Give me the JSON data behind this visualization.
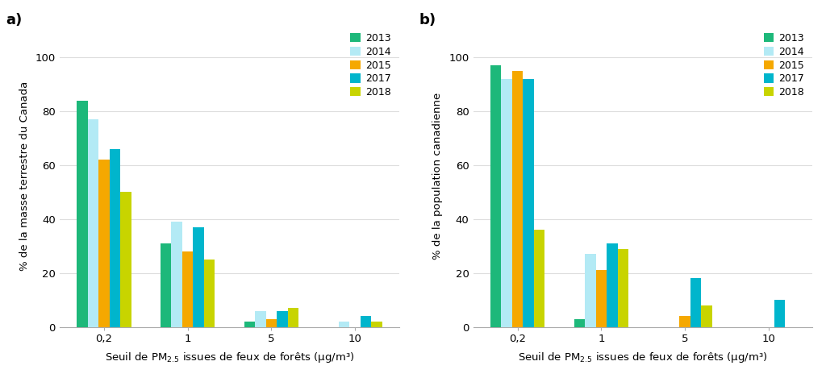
{
  "years": [
    "2013",
    "2014",
    "2015",
    "2017",
    "2018"
  ],
  "colors": [
    "#1db87a",
    "#b3eaf5",
    "#f5a800",
    "#00b5cc",
    "#c8d400"
  ],
  "thresholds": [
    "0,2",
    "1",
    "5",
    "10"
  ],
  "panel_a": {
    "title": "a)",
    "ylabel": "% de la masse terrestre du Canada",
    "data": {
      "0,2": [
        84,
        77,
        62,
        66,
        50
      ],
      "1": [
        31,
        39,
        28,
        37,
        25
      ],
      "5": [
        2,
        6,
        3,
        6,
        7
      ],
      "10": [
        0,
        2,
        0,
        4,
        2
      ]
    }
  },
  "panel_b": {
    "title": "b)",
    "ylabel": "% de la population canadienne",
    "data": {
      "0,2": [
        97,
        92,
        95,
        92,
        36
      ],
      "1": [
        3,
        27,
        21,
        31,
        29
      ],
      "5": [
        0,
        0,
        4,
        18,
        8
      ],
      "10": [
        0,
        0,
        0,
        10,
        0
      ]
    }
  },
  "xlabel": "Seuil de PM$_{2.5}$ issues de feux de forêts (μg/m³)",
  "ylim": [
    0,
    112
  ],
  "yticks": [
    0,
    20,
    40,
    60,
    80,
    100
  ],
  "background_color": "#ffffff",
  "bar_width": 0.13,
  "group_positions": [
    0,
    1,
    2,
    3
  ]
}
